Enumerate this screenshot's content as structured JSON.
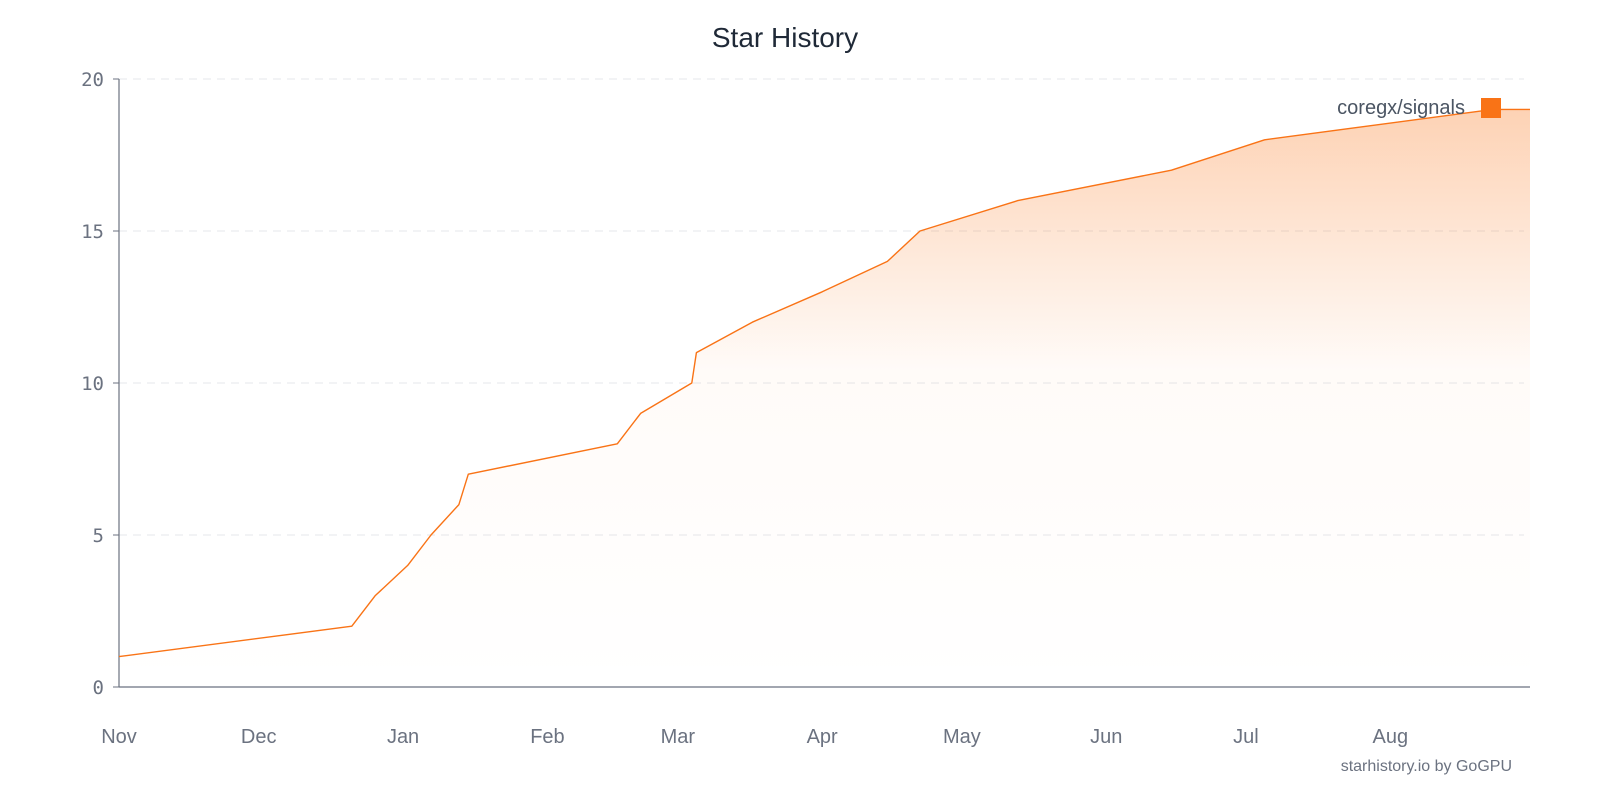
{
  "colors": {
    "series": "#f97316",
    "axis": "#6b7280",
    "grid": "#e5e7eb",
    "text": "#1f2937"
  },
  "credit": "starhistory.io by GoGPU",
  "chart_data": {
    "type": "area",
    "title": "Star History",
    "xlabel": "",
    "ylabel": "",
    "ylim": [
      0,
      20
    ],
    "yticks": [
      0,
      5,
      10,
      15,
      20
    ],
    "xlim": [
      "2024-11-01",
      "2025-08-31"
    ],
    "xticks": [
      {
        "date": "2024-11-01",
        "label": "Nov"
      },
      {
        "date": "2024-12-01",
        "label": "Dec"
      },
      {
        "date": "2025-01-01",
        "label": "Jan"
      },
      {
        "date": "2025-02-01",
        "label": "Feb"
      },
      {
        "date": "2025-03-01",
        "label": "Mar"
      },
      {
        "date": "2025-04-01",
        "label": "Apr"
      },
      {
        "date": "2025-05-01",
        "label": "May"
      },
      {
        "date": "2025-06-01",
        "label": "Jun"
      },
      {
        "date": "2025-07-01",
        "label": "Jul"
      },
      {
        "date": "2025-08-01",
        "label": "Aug"
      }
    ],
    "grid": true,
    "legend_position": "top-right",
    "series": [
      {
        "name": "coregx/signals",
        "color": "#f97316",
        "x": [
          "2024-11-01",
          "2024-12-21",
          "2024-12-26",
          "2025-01-02",
          "2025-01-07",
          "2025-01-13",
          "2025-01-15",
          "2025-02-16",
          "2025-02-21",
          "2025-03-04",
          "2025-03-05",
          "2025-03-17",
          "2025-04-01",
          "2025-04-15",
          "2025-04-22",
          "2025-05-13",
          "2025-06-15",
          "2025-07-05",
          "2025-08-23",
          "2025-08-31"
        ],
        "values": [
          1,
          2,
          3,
          4,
          5,
          6,
          7,
          8,
          9,
          10,
          11,
          12,
          13,
          14,
          15,
          16,
          17,
          18,
          19,
          19
        ]
      }
    ]
  }
}
